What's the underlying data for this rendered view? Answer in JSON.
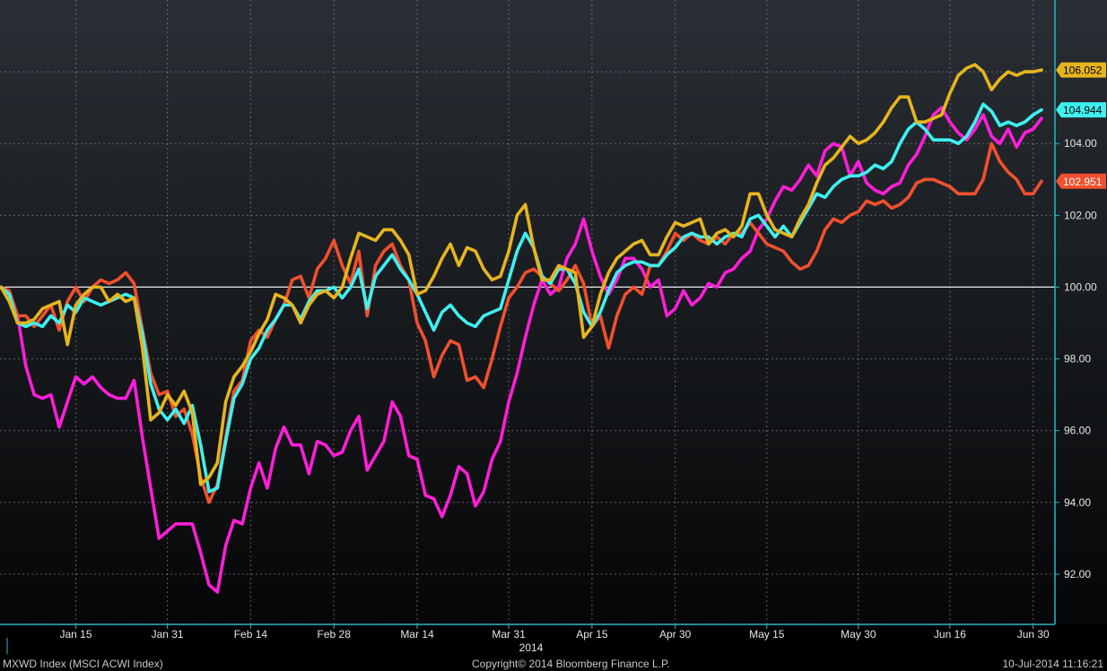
{
  "footer": {
    "left": "MXWD Index (MSCI ACWI Index)",
    "center": "Copyright© 2014 Bloomberg Finance L.P.",
    "right": "10-Jul-2014 11:16:21"
  },
  "colors": {
    "background_top": "#2a2f35",
    "background_bottom": "#050607",
    "grid": "#8a8a8a",
    "baseline": "#ffffff",
    "axis": "#29b6c8",
    "tick_text": "#e6e6e6",
    "label_text": "#000000"
  },
  "chart_data": {
    "type": "line",
    "x_unit": "trading day index (0 = Jan 2, 2014)",
    "xlabel": "",
    "ylabel": "",
    "ylim": [
      90.6,
      108.0
    ],
    "baseline": 100,
    "grid": true,
    "legend": "none",
    "year_label": "2014",
    "y_ticks": [
      92,
      94,
      96,
      98,
      100,
      102,
      104
    ],
    "y_tick_labels": [
      "92.00",
      "94.00",
      "96.00",
      "98.00",
      "100.00",
      "102.00",
      "104.00"
    ],
    "x_ticks": [
      {
        "label": "Jan 15",
        "x": 9
      },
      {
        "label": "Jan 31",
        "x": 20
      },
      {
        "label": "Feb 14",
        "x": 30
      },
      {
        "label": "Feb 28",
        "x": 40
      },
      {
        "label": "Mar 14",
        "x": 50
      },
      {
        "label": "Mar 31",
        "x": 61
      },
      {
        "label": "Apr 15",
        "x": 71
      },
      {
        "label": "Apr 30",
        "x": 81
      },
      {
        "label": "May 15",
        "x": 92
      },
      {
        "label": "May 30",
        "x": 103
      },
      {
        "label": "Jun 16",
        "x": 114
      },
      {
        "label": "Jun 30",
        "x": 124
      }
    ],
    "series": [
      {
        "key": "magenta",
        "color": "#ff1ed7",
        "last_label": "",
        "values": [
          100.0,
          99.8,
          99.2,
          97.8,
          97.0,
          96.9,
          97.0,
          96.1,
          96.8,
          97.5,
          97.3,
          97.5,
          97.2,
          97.0,
          96.9,
          96.9,
          97.4,
          95.8,
          94.4,
          93.0,
          93.2,
          93.4,
          93.4,
          93.4,
          92.6,
          91.7,
          91.5,
          92.8,
          93.5,
          93.4,
          94.4,
          95.1,
          94.4,
          95.5,
          96.1,
          95.6,
          95.6,
          94.8,
          95.7,
          95.6,
          95.3,
          95.4,
          96.0,
          96.4,
          94.9,
          95.3,
          95.7,
          96.8,
          96.4,
          95.3,
          95.2,
          94.2,
          94.1,
          93.6,
          94.2,
          95.0,
          94.8,
          93.9,
          94.3,
          95.2,
          95.7,
          96.8,
          97.6,
          98.6,
          99.5,
          100.2,
          99.8,
          100.0,
          100.8,
          101.2,
          101.9,
          101.0,
          100.3,
          99.8,
          100.2,
          100.8,
          100.8,
          100.5,
          100.0,
          100.2,
          99.2,
          99.4,
          99.9,
          99.5,
          99.7,
          100.1,
          100.0,
          100.4,
          100.5,
          100.8,
          101.0,
          101.6,
          101.9,
          102.4,
          102.8,
          102.7,
          103.0,
          103.4,
          103.1,
          103.8,
          104.0,
          103.9,
          103.1,
          103.5,
          102.9,
          102.7,
          102.6,
          102.8,
          102.9,
          103.4,
          103.7,
          104.2,
          104.8,
          105.0,
          104.6,
          104.3,
          104.1,
          104.4,
          104.8,
          104.2,
          104.0,
          104.4,
          103.9,
          104.3,
          104.4,
          104.7
        ]
      },
      {
        "key": "orange",
        "color": "#f0502e",
        "last_label": "102.951",
        "values": [
          100.0,
          99.9,
          99.2,
          99.2,
          98.9,
          99.2,
          99.5,
          98.8,
          99.6,
          100.0,
          99.6,
          100.0,
          100.2,
          100.1,
          100.2,
          100.4,
          100.1,
          98.8,
          97.6,
          97.0,
          97.1,
          96.4,
          96.6,
          95.9,
          94.7,
          94.0,
          94.5,
          95.8,
          97.1,
          97.4,
          98.5,
          98.8,
          98.6,
          99.1,
          99.5,
          100.2,
          100.3,
          99.7,
          100.5,
          100.8,
          101.3,
          100.6,
          100.1,
          101.0,
          99.2,
          100.6,
          101.0,
          101.2,
          100.6,
          100.2,
          99.0,
          98.5,
          97.5,
          98.1,
          98.5,
          98.4,
          97.4,
          97.5,
          97.2,
          98.0,
          98.9,
          99.7,
          100.0,
          100.4,
          100.5,
          100.3,
          100.1,
          99.9,
          100.2,
          100.6,
          100.1,
          98.9,
          99.2,
          98.3,
          99.2,
          99.8,
          100.0,
          99.8,
          100.6,
          100.6,
          101.0,
          101.5,
          101.3,
          101.5,
          101.3,
          101.2,
          101.4,
          101.2,
          101.5,
          101.5,
          101.8,
          101.5,
          101.2,
          101.1,
          101.0,
          100.7,
          100.5,
          100.6,
          101.0,
          101.6,
          101.9,
          101.8,
          102.0,
          102.1,
          102.4,
          102.3,
          102.4,
          102.2,
          102.3,
          102.5,
          102.9,
          103.0,
          103.0,
          102.9,
          102.8,
          102.6,
          102.6,
          102.6,
          103.0,
          104.0,
          103.5,
          103.2,
          103.0,
          102.6,
          102.6,
          102.95
        ]
      },
      {
        "key": "cyan",
        "color": "#3ff0f0",
        "last_label": "104.944",
        "values": [
          100.0,
          99.8,
          99.0,
          98.9,
          99.0,
          98.9,
          99.2,
          99.0,
          99.5,
          99.3,
          99.7,
          99.6,
          99.5,
          99.6,
          99.7,
          99.8,
          99.7,
          98.7,
          97.3,
          96.6,
          96.3,
          96.6,
          96.2,
          96.7,
          95.6,
          94.3,
          94.4,
          95.7,
          96.9,
          97.3,
          98.0,
          98.3,
          98.8,
          99.1,
          99.5,
          99.5,
          99.1,
          99.6,
          99.9,
          99.9,
          100.0,
          99.7,
          100.0,
          100.5,
          99.4,
          100.3,
          100.6,
          100.9,
          100.5,
          100.2,
          99.8,
          99.3,
          98.8,
          99.3,
          99.5,
          99.2,
          99.0,
          98.9,
          99.2,
          99.3,
          99.4,
          100.2,
          101.0,
          101.5,
          101.1,
          100.3,
          100.1,
          100.5,
          100.5,
          100.1,
          99.3,
          98.9,
          99.3,
          99.9,
          100.4,
          100.6,
          100.7,
          100.7,
          100.6,
          100.6,
          100.9,
          101.1,
          101.4,
          101.5,
          101.4,
          101.4,
          101.2,
          101.4,
          101.5,
          101.4,
          101.9,
          102.0,
          101.7,
          101.4,
          101.7,
          101.4,
          101.8,
          102.2,
          102.6,
          102.5,
          102.8,
          103.0,
          103.1,
          103.1,
          103.2,
          103.4,
          103.3,
          103.5,
          104.0,
          104.4,
          104.6,
          104.4,
          104.1,
          104.1,
          104.1,
          104.0,
          104.2,
          104.6,
          105.1,
          104.9,
          104.5,
          104.6,
          104.5,
          104.6,
          104.8,
          104.94
        ]
      },
      {
        "key": "yellow",
        "color": "#e6b51e",
        "last_label": "106.052",
        "values": [
          100.0,
          99.6,
          99.0,
          99.0,
          99.1,
          99.4,
          99.5,
          99.6,
          98.4,
          99.5,
          99.8,
          100.0,
          100.0,
          99.6,
          99.8,
          99.6,
          99.7,
          98.3,
          96.3,
          96.5,
          97.0,
          96.7,
          97.1,
          96.5,
          94.5,
          94.7,
          95.1,
          96.8,
          97.5,
          97.8,
          98.2,
          98.7,
          99.1,
          99.8,
          99.7,
          99.5,
          99.0,
          99.5,
          99.8,
          99.9,
          99.7,
          100.0,
          100.8,
          101.5,
          101.4,
          101.3,
          101.6,
          101.6,
          101.3,
          100.9,
          99.8,
          99.9,
          100.3,
          100.8,
          101.2,
          100.6,
          101.1,
          101.0,
          100.5,
          100.2,
          100.3,
          101.0,
          102.0,
          102.3,
          101.1,
          100.2,
          100.2,
          100.6,
          100.5,
          100.4,
          98.6,
          98.9,
          99.8,
          100.4,
          100.8,
          101.0,
          101.2,
          101.3,
          100.9,
          100.9,
          101.4,
          101.8,
          101.7,
          101.8,
          101.9,
          101.2,
          101.5,
          101.6,
          101.4,
          101.7,
          102.6,
          102.6,
          102.0,
          101.6,
          101.5,
          101.4,
          101.9,
          102.3,
          102.9,
          103.4,
          103.6,
          103.9,
          104.2,
          104.0,
          104.1,
          104.3,
          104.6,
          105.0,
          105.3,
          105.3,
          104.6,
          104.6,
          104.7,
          104.8,
          105.4,
          105.9,
          106.1,
          106.2,
          106.0,
          105.5,
          105.8,
          106.0,
          105.9,
          106.0,
          106.0,
          106.05
        ]
      }
    ]
  }
}
